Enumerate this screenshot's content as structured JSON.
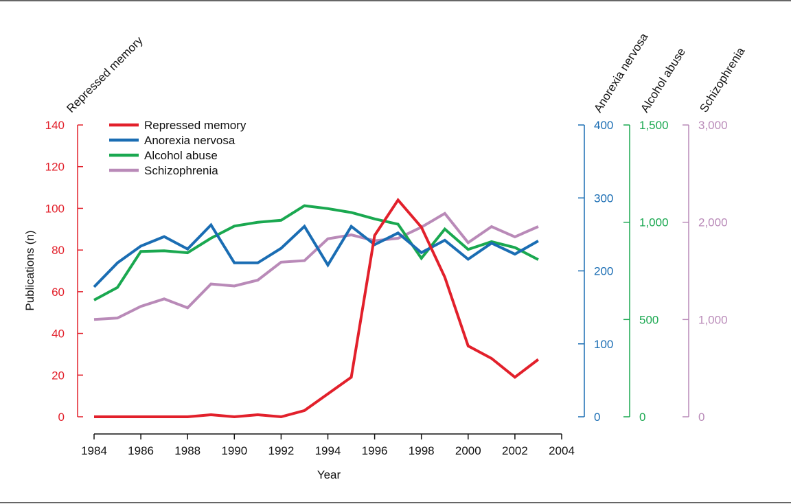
{
  "chart_data": {
    "type": "line",
    "x": [
      1984,
      1985,
      1986,
      1987,
      1988,
      1989,
      1990,
      1991,
      1992,
      1993,
      1994,
      1995,
      1996,
      1997,
      1998,
      1999,
      2000,
      2001,
      2002,
      2003
    ],
    "xlabel": "Year",
    "ylabel": "Publications (n)",
    "xlim": [
      1984,
      2004
    ],
    "xticks": [
      "1984",
      "1986",
      "1988",
      "1990",
      "1992",
      "1994",
      "1996",
      "1998",
      "2000",
      "2002",
      "2004"
    ],
    "grid": false,
    "legend_position": "top-left",
    "series": [
      {
        "name": "Repressed memory",
        "color": "#e2202b",
        "axis_title": "Repressed memory",
        "ylim": [
          0,
          140
        ],
        "yticks": [
          "0",
          "20",
          "40",
          "60",
          "80",
          "100",
          "120",
          "140"
        ],
        "values": [
          0,
          0,
          0,
          0,
          0,
          1,
          0,
          1,
          0,
          3,
          11,
          19,
          87,
          104,
          91,
          67,
          34,
          28,
          19,
          27.5
        ]
      },
      {
        "name": "Anorexia nervosa",
        "color": "#1a6db3",
        "axis_title": "Anorexia nervosa",
        "ylim": [
          0,
          400
        ],
        "yticks": [
          "0",
          "100",
          "200",
          "300",
          "400"
        ],
        "values": [
          178,
          211,
          234,
          247,
          230,
          263,
          211,
          211,
          231,
          261,
          208,
          261,
          236,
          252,
          225,
          242,
          216,
          238,
          223,
          241
        ]
      },
      {
        "name": "Alcohol abuse",
        "color": "#1aa850",
        "axis_title": "Alcohol abuse",
        "ylim": [
          0,
          1500
        ],
        "yticks": [
          "0",
          "500",
          "1,000",
          "1,500"
        ],
        "values": [
          600,
          665,
          850,
          853,
          843,
          918,
          980,
          1000,
          1010,
          1085,
          1070,
          1050,
          1017,
          990,
          815,
          965,
          860,
          900,
          870,
          808
        ]
      },
      {
        "name": "Schizophrenia",
        "color": "#b98ab8",
        "axis_title": "Schizophrenia",
        "ylim": [
          0,
          3000
        ],
        "yticks": [
          "0",
          "1,000",
          "2,000",
          "3,000"
        ],
        "values": [
          1000,
          1015,
          1135,
          1212,
          1120,
          1365,
          1345,
          1405,
          1590,
          1605,
          1830,
          1870,
          1810,
          1835,
          1950,
          2090,
          1790,
          1955,
          1850,
          1955
        ]
      }
    ]
  }
}
